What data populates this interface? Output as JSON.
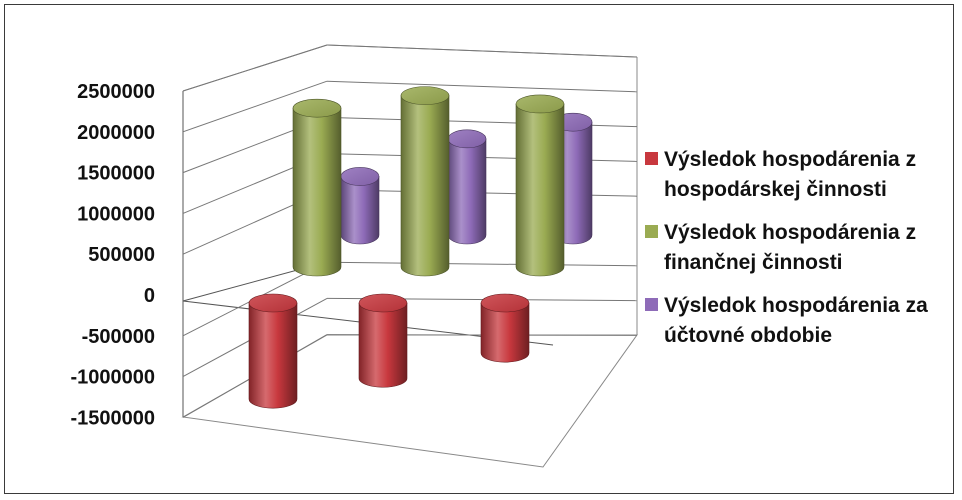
{
  "chart_data": {
    "type": "bar",
    "title": "",
    "xlabel": "",
    "ylabel": "",
    "ylim": [
      -1500000,
      2500000
    ],
    "y_ticks": [
      "2500000",
      "2000000",
      "1500000",
      "1000000",
      "500000",
      "0",
      "-500000",
      "-1000000",
      "-1500000"
    ],
    "y_tick_values": [
      2500000,
      2000000,
      1500000,
      1000000,
      500000,
      0,
      -500000,
      -1000000,
      -1500000
    ],
    "grid": true,
    "legend_position": "right",
    "style": "3d-cylinder",
    "categories": [
      "",
      "",
      ""
    ],
    "series": [
      {
        "name": "Výsledok hospodárenia z hospodárskej činnosti",
        "color": "#c8383e",
        "values": [
          -1150000,
          -900000,
          -600000
        ]
      },
      {
        "name": "Výsledok hospodárenia z finančnej činnosti",
        "color": "#9aab52",
        "values": [
          1900000,
          2050000,
          1950000
        ]
      },
      {
        "name": "Výsledok hospodárenia za účtovné obdobie",
        "color": "#8e6bb8",
        "values": [
          700000,
          1150000,
          1350000
        ]
      }
    ]
  }
}
